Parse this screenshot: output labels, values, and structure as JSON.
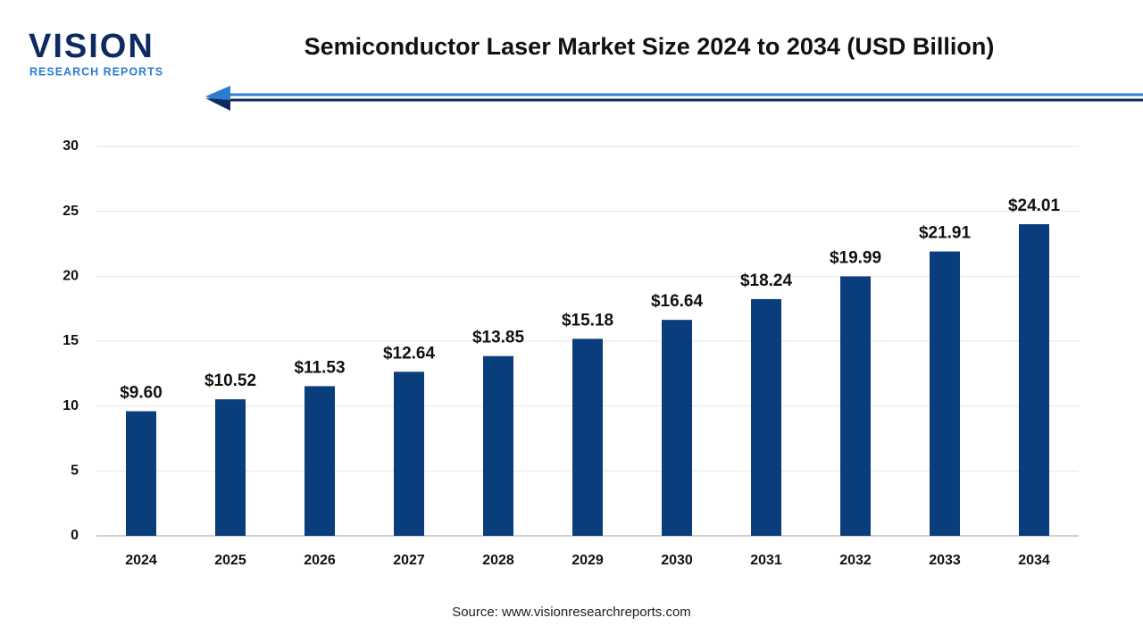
{
  "logo": {
    "name": "VISION",
    "tagline": "RESEARCH REPORTS"
  },
  "chart_data": {
    "type": "bar",
    "title": "Semiconductor Laser Market Size 2024 to 2034 (USD Billion)",
    "categories": [
      "2024",
      "2025",
      "2026",
      "2027",
      "2028",
      "2029",
      "2030",
      "2031",
      "2032",
      "2033",
      "2034"
    ],
    "values": [
      9.6,
      10.52,
      11.53,
      12.64,
      13.85,
      15.18,
      16.64,
      18.24,
      19.99,
      21.91,
      24.01
    ],
    "value_labels": [
      "$9.60",
      "$10.52",
      "$11.53",
      "$12.64",
      "$13.85",
      "$15.18",
      "$16.64",
      "$18.24",
      "$19.99",
      "$21.91",
      "$24.01"
    ],
    "color": "#0a3d7c",
    "ylim": [
      0,
      30
    ],
    "yticks": [
      0,
      5,
      10,
      15,
      20,
      25,
      30
    ],
    "grid": true,
    "source": "Source: www.visionresearchreports.com"
  }
}
